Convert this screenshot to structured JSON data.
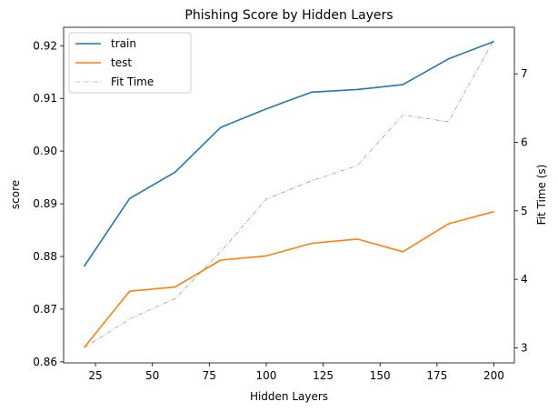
{
  "chart_data": {
    "type": "line",
    "title": "Phishing Score by Hidden Layers",
    "xlabel": "Hidden Layers",
    "ylabel": "score",
    "y2label": "Fit Time (s)",
    "x": [
      20,
      40,
      60,
      80,
      100,
      120,
      140,
      160,
      180,
      200
    ],
    "xlim": [
      11,
      209
    ],
    "ylim": [
      0.8598,
      0.9235
    ],
    "y2lim": [
      2.78,
      7.68
    ],
    "xticks": [
      25,
      50,
      75,
      100,
      125,
      150,
      175,
      200
    ],
    "yticks": [
      0.86,
      0.87,
      0.88,
      0.89,
      0.9,
      0.91,
      0.92
    ],
    "yticklabels": [
      "0.86",
      "0.87",
      "0.88",
      "0.89",
      "0.90",
      "0.91",
      "0.92"
    ],
    "y2ticks": [
      3,
      4,
      5,
      6,
      7
    ],
    "grid": false,
    "legend_position": "top-left",
    "series": [
      {
        "name": "train",
        "axis": "left",
        "color": "#1f77b4",
        "style": "solid",
        "values": [
          0.8781,
          0.891,
          0.896,
          0.9045,
          0.908,
          0.9112,
          0.9117,
          0.9126,
          0.9175,
          0.9208
        ]
      },
      {
        "name": "test",
        "axis": "left",
        "color": "#ff7f0e",
        "style": "solid",
        "values": [
          0.8627,
          0.8734,
          0.8742,
          0.8793,
          0.8801,
          0.8825,
          0.8833,
          0.8809,
          0.8862,
          0.8885
        ]
      },
      {
        "name": "Fit Time",
        "axis": "right",
        "color": "#808080",
        "style": "dashdot",
        "values": [
          3.0,
          3.42,
          3.72,
          4.4,
          5.17,
          5.44,
          5.66,
          6.4,
          6.3,
          7.5
        ]
      }
    ]
  }
}
